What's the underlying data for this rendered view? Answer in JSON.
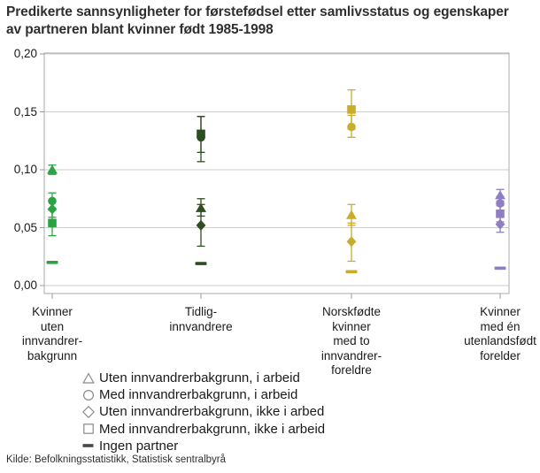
{
  "title": "Predikerte sannsynligheter for førstefødsel etter samlivsstatus og egenskaper\nav partneren blant kvinner født 1985-1998",
  "source": "Kilde: Befolkningsstatistikk, Statistisk sentralbyrå",
  "y_axis": {
    "tick_labels": [
      "0,20",
      "0,15",
      "0,10",
      "0,05",
      "0,00"
    ],
    "tick_values": [
      0.2,
      0.15,
      0.1,
      0.05,
      0.0
    ]
  },
  "x_axis": {
    "category_labels": [
      "Kvinner\nuten\ninnvandrer-\nbakgrunn",
      "Tidlig-\ninnvandrere",
      "Norskfødte\nkvinner\nmed to\ninnvandrer-\nforeldre",
      "Kvinner\nmed én\nutenlandsfødt\nforelder"
    ]
  },
  "legend": [
    {
      "marker": "triangle",
      "label": "Uten innvandrerbakgrunn, i arbeid"
    },
    {
      "marker": "circle",
      "label": "Med innvandrerbakgrunn, i arbeid"
    },
    {
      "marker": "diamond",
      "label": "Uten innvandrerbakgrunn, ikke i arbed"
    },
    {
      "marker": "square",
      "label": "Med innvandrerbakgrunn, ikke i arbeid"
    },
    {
      "marker": "dash",
      "label": "Ingen partner"
    }
  ],
  "group_colors": [
    "#2BA345",
    "#2E4D20",
    "#C9AC2A",
    "#8F7EC4"
  ],
  "style_colors": {
    "grid": "#cccccc",
    "plot_border": "#ababab",
    "tick": "#999999",
    "legend_glyph_outline": "#8a8a8a",
    "legend_dash_fill": "#474747"
  },
  "chart_data": {
    "type": "scatter",
    "title": "Predikerte sannsynligheter for førstefødsel etter samlivsstatus og egenskaper av partneren blant kvinner født 1985-1998",
    "categories": [
      "Kvinner uten innvandrerbakgrunn",
      "Tidliginnvandrere",
      "Norskfødte kvinner med to innvandrerforeldre",
      "Kvinner med én utenlandsfødt forelder"
    ],
    "ylim": [
      0.0,
      0.2
    ],
    "grid": true,
    "legend_position": "bottom-left",
    "error_bars": "95% CI (estimated from whiskers)",
    "series": [
      {
        "name": "Uten innvandrerbakgrunn, i arbeid",
        "marker": "triangle",
        "values": [
          0.1,
          0.067,
          0.061,
          0.078
        ],
        "ci_low": [
          0.096,
          0.06,
          0.052,
          0.073
        ],
        "ci_high": [
          0.104,
          0.075,
          0.07,
          0.083
        ]
      },
      {
        "name": "Med innvandrerbakgrunn, i arbeid",
        "marker": "circle",
        "values": [
          0.073,
          0.128,
          0.137,
          0.071
        ],
        "ci_low": [
          0.066,
          0.107,
          0.128,
          0.065
        ],
        "ci_high": [
          0.08,
          0.146,
          0.147,
          0.077
        ]
      },
      {
        "name": "Uten innvandrerbakgrunn, ikke i arbed",
        "marker": "diamond",
        "values": [
          0.066,
          0.052,
          0.038,
          0.053
        ],
        "ci_low": [
          0.059,
          0.034,
          0.021,
          0.046
        ],
        "ci_high": [
          0.073,
          0.07,
          0.054,
          0.06
        ]
      },
      {
        "name": "Med innvandrerbakgrunn, ikke i arbeid",
        "marker": "square",
        "values": [
          0.054,
          0.131,
          0.152,
          0.062
        ],
        "ci_low": [
          0.043,
          0.115,
          0.135,
          0.055
        ],
        "ci_high": [
          0.065,
          0.146,
          0.169,
          0.069
        ]
      },
      {
        "name": "Ingen partner",
        "marker": "dash",
        "values": [
          0.02,
          0.019,
          0.012,
          0.015
        ],
        "ci_low": null,
        "ci_high": null
      }
    ]
  }
}
